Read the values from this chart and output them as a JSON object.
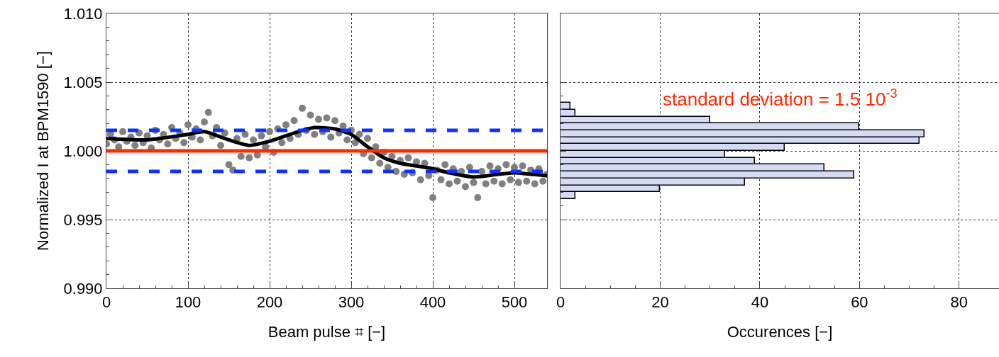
{
  "chart_data": [
    {
      "type": "scatter",
      "xlabel": "Beam pulse ⌗ [−]",
      "ylabel": "Normalized I at BPM1590 [−]",
      "xlim": [
        0,
        540
      ],
      "xticks": [
        0,
        100,
        200,
        300,
        400,
        500
      ],
      "ylim": [
        0.99,
        1.01
      ],
      "yticks": [
        {
          "value": 0.99,
          "label": "0.990"
        },
        {
          "value": 0.995,
          "label": "0.995"
        },
        {
          "value": 1.0,
          "label": "1.000"
        },
        {
          "value": 1.005,
          "label": "1.005"
        },
        {
          "value": 1.01,
          "label": "1.010"
        }
      ],
      "grid": true,
      "marker": "circle",
      "ref_lines": [
        {
          "axis": "y",
          "value": 1.0,
          "color": "#ff2a00",
          "line_style": "solid"
        },
        {
          "axis": "y",
          "value": 1.0015,
          "color": "#1030ff",
          "line_style": "dashed"
        },
        {
          "axis": "y",
          "value": 0.9985,
          "color": "#1030ff",
          "line_style": "dashed"
        }
      ],
      "series": [
        {
          "type": "scatter",
          "color": "#808080",
          "x": [
            0,
            5,
            10,
            15,
            20,
            25,
            30,
            35,
            40,
            45,
            50,
            55,
            60,
            65,
            70,
            75,
            80,
            85,
            90,
            95,
            100,
            105,
            110,
            115,
            120,
            125,
            130,
            135,
            140,
            145,
            150,
            155,
            160,
            165,
            170,
            175,
            180,
            185,
            190,
            195,
            200,
            205,
            210,
            215,
            220,
            225,
            230,
            235,
            240,
            245,
            250,
            255,
            260,
            265,
            270,
            275,
            280,
            285,
            290,
            295,
            300,
            305,
            310,
            315,
            320,
            325,
            330,
            335,
            340,
            345,
            350,
            355,
            360,
            365,
            370,
            375,
            380,
            385,
            390,
            395,
            400,
            405,
            410,
            415,
            420,
            425,
            430,
            435,
            440,
            445,
            450,
            455,
            460,
            465,
            470,
            475,
            480,
            485,
            490,
            495,
            500,
            505,
            510,
            515,
            520,
            525,
            530,
            535,
            540
          ],
          "values": [
            1.0005,
            1.0012,
            1.0008,
            1.0003,
            1.0014,
            1.0007,
            1.001,
            1.0004,
            1.0013,
            1.0006,
            1.0011,
            1.0002,
            1.0015,
            1.0008,
            1.0012,
            1.0005,
            1.0017,
            1.0009,
            1.0013,
            1.0006,
            1.0019,
            1.001,
            1.0016,
            1.0008,
            1.0021,
            1.0028,
            1.0011,
            1.0017,
            1.0004,
            1.0013,
            0.999,
            0.9986,
            1.0009,
            0.9996,
            1.0012,
            0.9995,
            1.0008,
            0.9997,
            1.0011,
            1.0003,
            1.0014,
            0.9999,
            1.0016,
            1.0006,
            1.0019,
            1.0009,
            1.0022,
            1.0012,
            1.0031,
            1.0015,
            1.0026,
            1.0012,
            1.0023,
            1.0014,
            1.0024,
            1.001,
            1.0022,
            1.0013,
            1.0018,
            1.0008,
            1.0015,
            1.0006,
            1.0012,
            0.9998,
            1.0009,
            0.9995,
            1.0003,
            0.9991,
            0.9999,
            0.9988,
            0.9996,
            0.9985,
            0.9993,
            0.9983,
            0.9995,
            0.9984,
            0.9992,
            0.9979,
            0.9991,
            0.9982,
            0.9966,
            0.9986,
            0.9979,
            0.999,
            0.9976,
            0.9987,
            0.9978,
            0.9985,
            0.9974,
            0.9988,
            0.9977,
            0.9966,
            0.9985,
            0.9976,
            0.9989,
            0.9978,
            0.9987,
            0.9976,
            0.999,
            0.9979,
            0.9988,
            0.9977,
            0.9989,
            0.9978,
            0.9986,
            0.9976,
            0.9987,
            0.9978,
            0.9983
          ]
        },
        {
          "type": "line",
          "color": "#000000",
          "marker": "none",
          "x": [
            0,
            50,
            100,
            120,
            150,
            175,
            200,
            230,
            255,
            280,
            300,
            320,
            340,
            360,
            380,
            400,
            420,
            450,
            480,
            500,
            520,
            540
          ],
          "values": [
            1.0009,
            1.0008,
            1.0012,
            1.0014,
            1.0008,
            1.0004,
            1.0007,
            1.0013,
            1.0017,
            1.0016,
            1.0012,
            1.0003,
            0.9995,
            0.9991,
            0.9989,
            0.9987,
            0.9984,
            0.9981,
            0.9983,
            0.9984,
            0.9983,
            0.9982
          ]
        }
      ]
    },
    {
      "type": "histogram",
      "orientation": "horizontal",
      "xlabel": "Occurences [−]",
      "color": "#d6dbf5",
      "bins": [
        0.9965,
        0.997,
        0.9975,
        0.998,
        0.9985,
        0.999,
        0.9995,
        1.0,
        1.0005,
        1.001,
        1.0015,
        1.002,
        1.0025,
        1.003,
        1.0035
      ],
      "values": [
        3,
        20,
        37,
        59,
        53,
        39,
        33,
        45,
        72,
        73,
        60,
        30,
        3,
        2
      ],
      "xlim": [
        0,
        88
      ],
      "xticks": [
        0,
        20,
        40,
        60,
        80
      ],
      "ylim": [
        0.99,
        1.01
      ],
      "yticks": [
        0.995,
        1.0,
        1.005
      ],
      "tick_labels": "x",
      "grid": true,
      "annotations": [
        "standard deviation = 1.5 10$^{-3}$"
      ]
    }
  ]
}
